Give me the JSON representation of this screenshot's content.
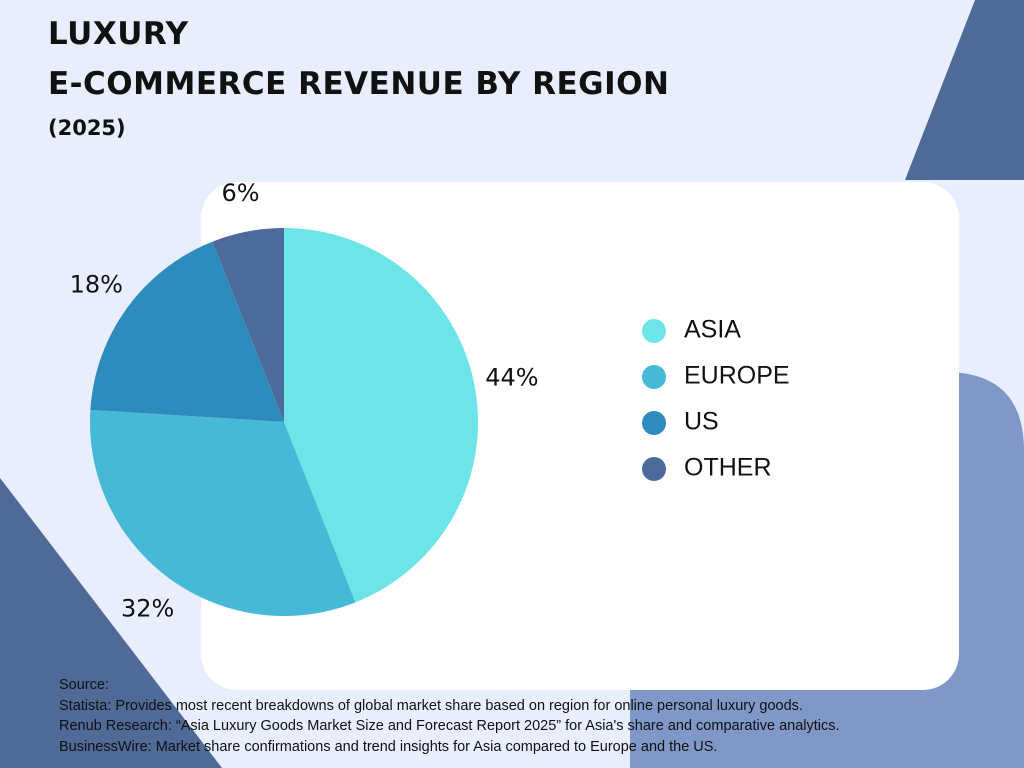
{
  "title": {
    "line1": "LUXURY",
    "line2": "E-COMMERCE REVENUE BY REGION",
    "line3": "(2025)"
  },
  "colors": {
    "background": "#e8eefd",
    "shape_dark": "#4f6a97",
    "shape_light": "#7f98c8",
    "card": "#ffffff"
  },
  "chart_data": {
    "type": "pie",
    "categories": [
      "ASIA",
      "EUROPE",
      "US",
      "OTHER"
    ],
    "values": [
      44,
      32,
      18,
      6
    ],
    "labels": [
      "44%",
      "32%",
      "18%",
      "6%"
    ],
    "colors": [
      "#6de4e8",
      "#45b9d6",
      "#2e8bbd",
      "#4d6a9d"
    ],
    "legend_position": "right"
  },
  "sources": {
    "heading": "Source:",
    "lines": [
      "Statista: Provides most recent breakdowns of global market share based on region for online personal luxury goods.",
      "Renub Research: “Asia Luxury Goods Market Size and Forecast Report 2025” for Asia's share and comparative analytics.",
      "BusinessWire: Market share confirmations and trend insights for Asia compared to Europe and the US."
    ]
  }
}
